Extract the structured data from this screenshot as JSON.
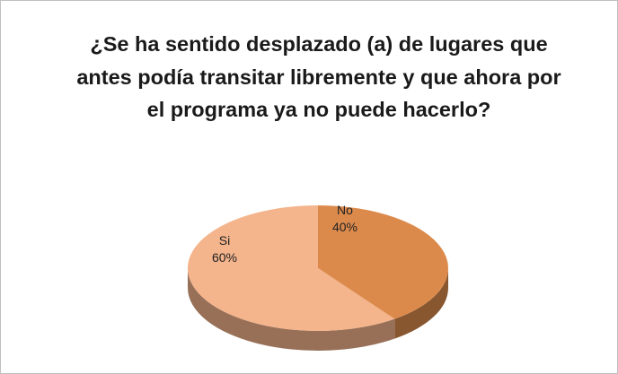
{
  "chart_data": {
    "type": "pie",
    "title": "¿Se ha sentido desplazado (a) de lugares que antes podía transitar libremente y que ahora por el programa ya no puede hacerlo?",
    "categories": [
      "No",
      "Si"
    ],
    "values": [
      40,
      60
    ],
    "value_labels": [
      "40%",
      "60%"
    ],
    "colors": [
      "#dc8a4c",
      "#f4b48c"
    ]
  }
}
